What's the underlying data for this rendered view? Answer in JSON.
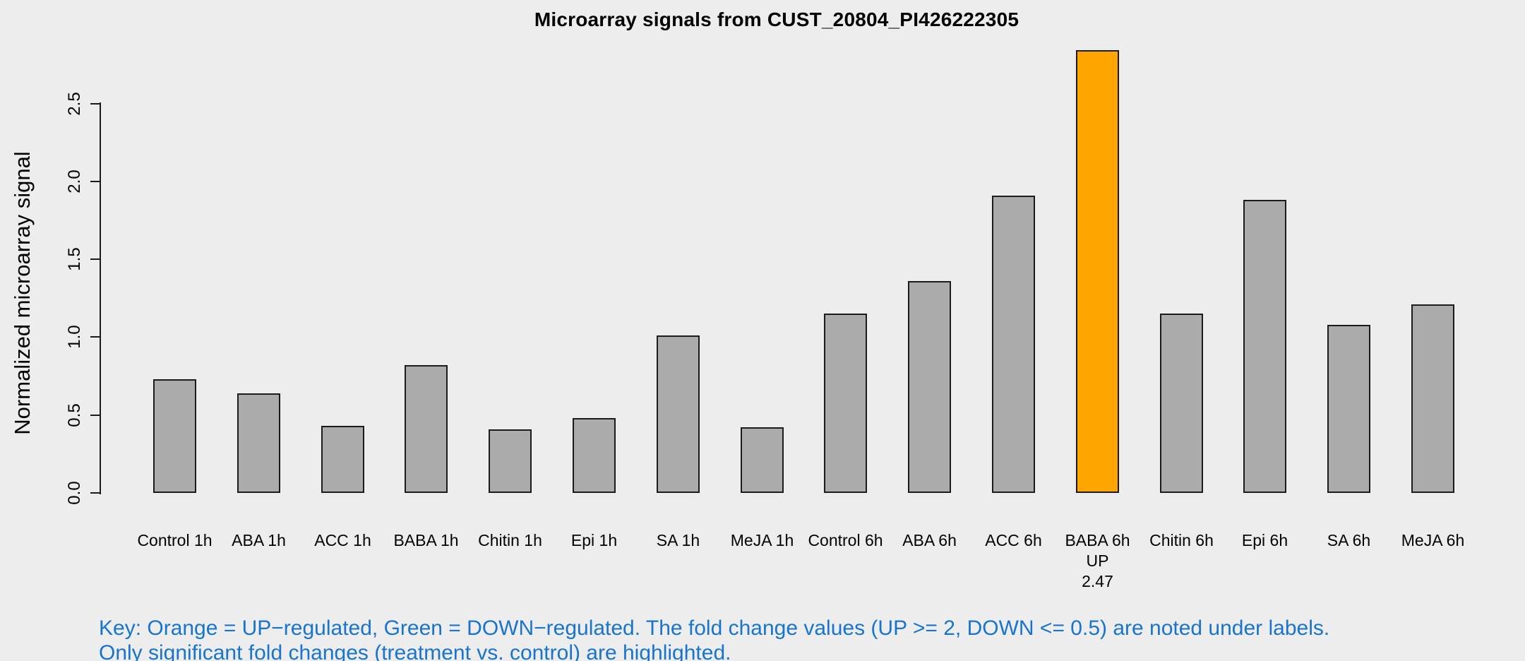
{
  "title": "Microarray signals from CUST_20804_PI426222305",
  "ylabel": "Normalized microarray signal",
  "key": {
    "line1": "Key: Orange = UP−regulated, Green = DOWN−regulated. The fold change values (UP >= 2, DOWN <= 0.5) are noted under labels.",
    "line2": "Only significant fold changes (treatment vs. control) are highlighted.",
    "text_color": "#1874CD"
  },
  "colors": {
    "background": "#EDEDED",
    "bar_fill": "#ABABAB",
    "bar_border": "#1B1B1B",
    "highlight_up": "#FFA500",
    "axis": "#1B1B1B",
    "text": "#000000"
  },
  "chart_data": {
    "type": "bar",
    "title": "Microarray signals from CUST_20804_PI426222305",
    "xlabel": "",
    "ylabel": "Normalized microarray signal",
    "categories": [
      "Control 1h",
      "ABA 1h",
      "ACC 1h",
      "BABA 1h",
      "Chitin 1h",
      "Epi 1h",
      "SA 1h",
      "MeJA 1h",
      "Control 6h",
      "ABA 6h",
      "ACC 6h",
      "BABA 6h",
      "Chitin 6h",
      "Epi 6h",
      "SA 6h",
      "MeJA 6h"
    ],
    "values": [
      0.73,
      0.64,
      0.43,
      0.82,
      0.41,
      0.48,
      1.01,
      0.42,
      1.15,
      1.36,
      1.91,
      2.84,
      1.15,
      1.88,
      1.08,
      1.21
    ],
    "yticks": [
      0.0,
      0.5,
      1.0,
      1.5,
      2.0,
      2.5
    ],
    "ylim": [
      0,
      2.9
    ],
    "grid": false,
    "legend": false,
    "highlights": [
      {
        "category": "BABA 6h",
        "direction": "UP",
        "fold_change": "2.47",
        "color": "#FFA500",
        "annotation_lines": [
          "UP",
          "2.47"
        ]
      }
    ]
  }
}
